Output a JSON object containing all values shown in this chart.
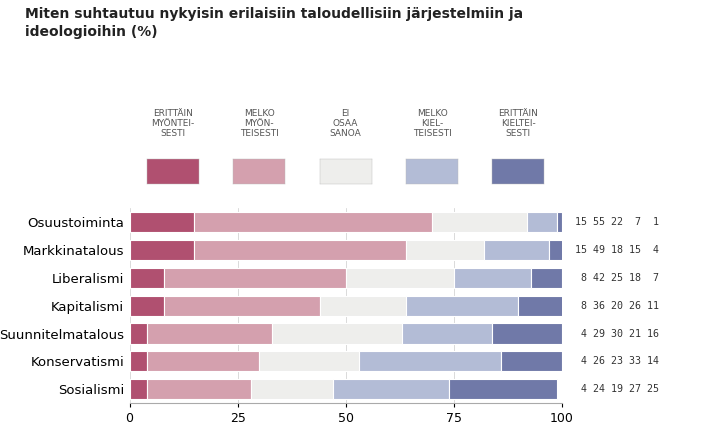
{
  "title": "Miten suhtautuu nykyisin erilaisiin taloudellisiin järjestelmiin ja\nideologioihin (%)",
  "categories": [
    "Osuustoiminta",
    "Markkinatalous",
    "Liberalismi",
    "Kapitalismi",
    "Suunnitelmatalous",
    "Konservatismi",
    "Sosialismi"
  ],
  "legend_labels": [
    "ERITTÄIN\nMYÖNTEI-\nSESTI",
    "MELKO\nMYÖN-\nTEISESTI",
    "EI\nOSAA\nSANOA",
    "MELKO\nKIEL-\nTEISESTI",
    "ERITTÄIN\nKIELTEI-\nSESTI"
  ],
  "colors": [
    "#b05070",
    "#d4a0ae",
    "#eeeeec",
    "#b3bcd6",
    "#7079a8"
  ],
  "data": [
    [
      15,
      55,
      22,
      7,
      1
    ],
    [
      15,
      49,
      18,
      15,
      4
    ],
    [
      8,
      42,
      25,
      18,
      7
    ],
    [
      8,
      36,
      20,
      26,
      11
    ],
    [
      4,
      29,
      30,
      21,
      16
    ],
    [
      4,
      26,
      23,
      33,
      14
    ],
    [
      4,
      24,
      19,
      27,
      25
    ]
  ],
  "background_color": "#ffffff",
  "xlim": [
    0,
    100
  ],
  "xlabel_ticks": [
    0,
    25,
    50,
    75,
    100
  ],
  "value_labels": [
    "15 55 22 7  1",
    "15 49 18 15  4",
    "8 42 25 18  7",
    "8 36 20 26 11",
    "4 29 30 21 16",
    "4 26 23 33 14",
    "4 24 19 27 25"
  ]
}
